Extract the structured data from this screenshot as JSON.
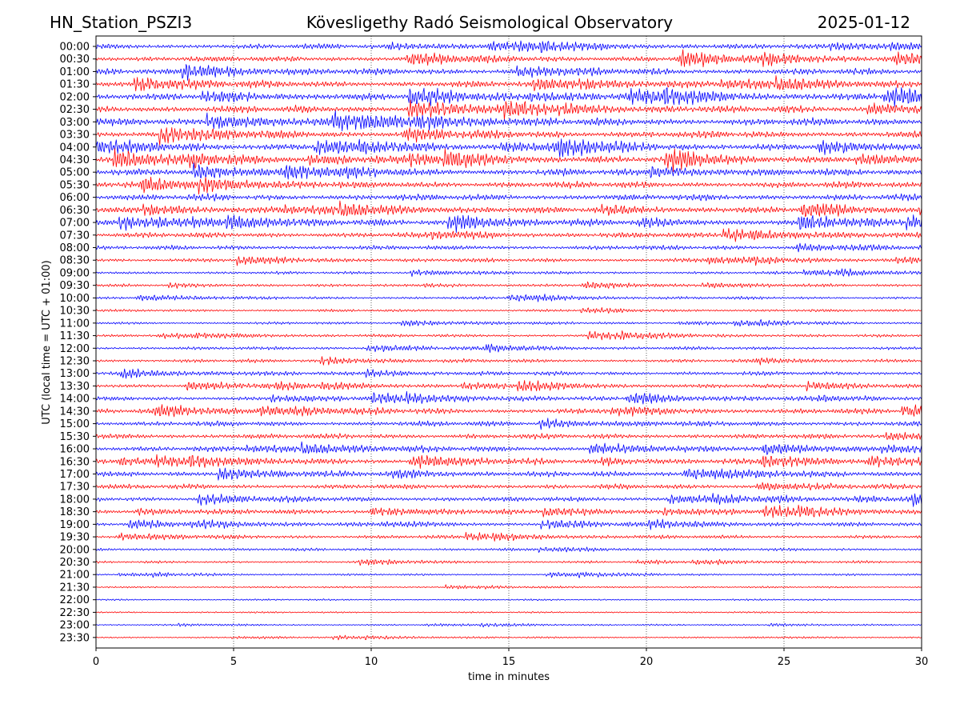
{
  "header": {
    "station": "HN_Station_PSZI3",
    "title": "Kövesligethy Radó Seismological Observatory",
    "date": "2025-01-12"
  },
  "colors": {
    "even_trace": "#0000ff",
    "odd_trace": "#ff0000",
    "axes": "#000000",
    "grid": "#000000"
  },
  "chart_data": {
    "type": "line",
    "subtype": "helicorder",
    "xlabel": "time in minutes",
    "ylabel": "UTC (local time = UTC + 01:00)",
    "xlim": [
      0,
      30
    ],
    "xticks": [
      0,
      5,
      10,
      15,
      20,
      25,
      30
    ],
    "x_gridlines": [
      5,
      10,
      15,
      20,
      25
    ],
    "grid": "dotted vertical",
    "trace_length_minutes": 30,
    "rows": [
      "00:00",
      "00:30",
      "01:00",
      "01:30",
      "02:00",
      "02:30",
      "03:00",
      "03:30",
      "04:00",
      "04:30",
      "05:00",
      "05:30",
      "06:00",
      "06:30",
      "07:00",
      "07:30",
      "08:00",
      "08:30",
      "09:00",
      "09:30",
      "10:00",
      "10:30",
      "11:00",
      "11:30",
      "12:00",
      "12:30",
      "13:00",
      "13:30",
      "14:00",
      "14:30",
      "15:00",
      "15:30",
      "16:00",
      "16:30",
      "17:00",
      "17:30",
      "18:00",
      "18:30",
      "19:00",
      "19:30",
      "20:00",
      "20:30",
      "21:00",
      "21:30",
      "22:00",
      "22:30",
      "23:00",
      "23:30"
    ],
    "relative_noise_level": [
      0.5,
      0.55,
      0.6,
      0.62,
      0.7,
      0.72,
      0.72,
      0.7,
      0.7,
      0.66,
      0.66,
      0.64,
      0.64,
      0.6,
      0.58,
      0.5,
      0.42,
      0.35,
      0.22,
      0.2,
      0.22,
      0.2,
      0.2,
      0.24,
      0.26,
      0.28,
      0.36,
      0.36,
      0.4,
      0.5,
      0.48,
      0.48,
      0.5,
      0.48,
      0.48,
      0.46,
      0.46,
      0.42,
      0.34,
      0.3,
      0.22,
      0.16,
      0.12,
      0.1,
      0.08,
      0.08,
      0.07,
      0.07
    ]
  }
}
